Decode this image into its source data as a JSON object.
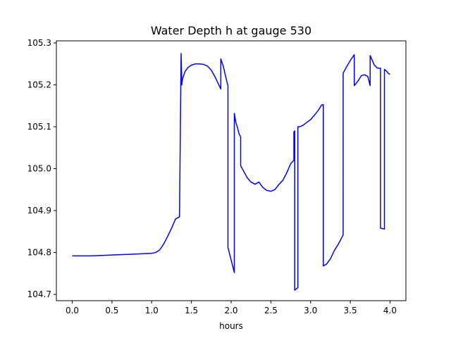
{
  "chart_data": {
    "type": "line",
    "title": "Water Depth h at gauge 530",
    "xlabel": "hours",
    "ylabel": "",
    "xlim": [
      -0.2,
      4.2
    ],
    "ylim": [
      104.685,
      105.305
    ],
    "grid": false,
    "legend": "none",
    "x_ticks": [
      0.0,
      0.5,
      1.0,
      1.5,
      2.0,
      2.5,
      3.0,
      3.5,
      4.0
    ],
    "x_tick_labels": [
      "0.0",
      "0.5",
      "1.0",
      "1.5",
      "2.0",
      "2.5",
      "3.0",
      "3.5",
      "4.0"
    ],
    "y_ticks": [
      104.7,
      104.8,
      104.9,
      105.0,
      105.1,
      105.2,
      105.3
    ],
    "y_tick_labels": [
      "104.7",
      "104.8",
      "104.9",
      "105.0",
      "105.1",
      "105.2",
      "105.3"
    ],
    "series": [
      {
        "color": "#0000ff",
        "x": [
          0.0,
          0.25,
          0.5,
          0.75,
          1.0,
          1.05,
          1.1,
          1.15,
          1.2,
          1.25,
          1.3,
          1.35,
          1.37,
          1.37,
          1.38,
          1.38,
          1.39,
          1.42,
          1.46,
          1.5,
          1.55,
          1.6,
          1.65,
          1.7,
          1.75,
          1.8,
          1.87,
          1.87,
          1.9,
          1.95,
          1.96,
          1.96,
          2.04,
          2.04,
          2.06,
          2.08,
          2.1,
          2.12,
          2.12,
          2.16,
          2.2,
          2.25,
          2.3,
          2.35,
          2.4,
          2.45,
          2.5,
          2.55,
          2.6,
          2.65,
          2.7,
          2.75,
          2.79,
          2.79,
          2.8,
          2.8,
          2.84,
          2.84,
          2.86,
          2.9,
          2.95,
          3.0,
          3.05,
          3.1,
          3.14,
          3.16,
          3.16,
          3.2,
          3.25,
          3.3,
          3.35,
          3.41,
          3.41,
          3.45,
          3.5,
          3.55,
          3.55,
          3.6,
          3.64,
          3.68,
          3.72,
          3.75,
          3.75,
          3.8,
          3.84,
          3.88,
          3.88,
          3.93,
          3.93,
          3.96,
          3.98,
          4.0
        ],
        "y": [
          104.792,
          104.792,
          104.794,
          104.796,
          104.798,
          104.8,
          104.806,
          104.82,
          104.838,
          104.858,
          104.88,
          104.885,
          105.273,
          105.275,
          105.2,
          105.205,
          105.215,
          105.232,
          105.242,
          105.247,
          105.25,
          105.25,
          105.249,
          105.245,
          105.235,
          105.218,
          105.19,
          105.262,
          105.245,
          105.205,
          105.198,
          104.812,
          104.752,
          105.132,
          105.11,
          105.098,
          105.083,
          105.076,
          105.007,
          104.993,
          104.979,
          104.968,
          104.963,
          104.968,
          104.955,
          104.948,
          104.946,
          104.95,
          104.962,
          104.972,
          104.99,
          105.012,
          105.02,
          105.088,
          105.09,
          104.71,
          104.716,
          105.1,
          105.1,
          105.103,
          105.11,
          105.117,
          105.128,
          105.14,
          105.152,
          105.153,
          104.768,
          104.772,
          104.785,
          104.805,
          104.82,
          104.842,
          105.228,
          105.242,
          105.258,
          105.272,
          105.198,
          105.21,
          105.222,
          105.224,
          105.22,
          105.198,
          105.27,
          105.248,
          105.24,
          105.24,
          104.858,
          104.856,
          105.237,
          105.232,
          105.227,
          105.225
        ]
      }
    ]
  }
}
